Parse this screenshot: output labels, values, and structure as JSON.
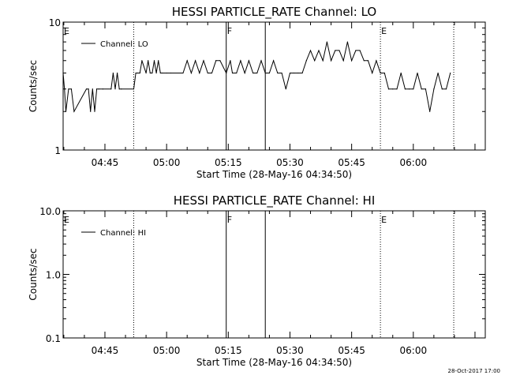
{
  "footer_timestamp": "28-Oct-2017 17:00",
  "chart_data": [
    {
      "type": "line",
      "title": "HESSI PARTICLE_RATE Channel: LO",
      "xlabel": "Start Time (28-May-16 04:34:50)",
      "ylabel": "Counts/sec",
      "y_scale": "log",
      "ylim": [
        1,
        10
      ],
      "y_ticks": [
        "1",
        "10"
      ],
      "xlim": [
        "04:34:50",
        "06:17:30"
      ],
      "x_ticks": [
        "04:45",
        "05:00",
        "05:15",
        "05:30",
        "05:45",
        "06:00"
      ],
      "legend": {
        "placement": "top-left",
        "entries": [
          "Channel: LO"
        ]
      },
      "vertical_markers": [
        {
          "time": "04:34:50",
          "label": "E",
          "style": "none"
        },
        {
          "time": "04:52:00",
          "label": "",
          "style": "dotted"
        },
        {
          "time": "05:14:30",
          "label": "F",
          "style": "solid"
        },
        {
          "time": "05:24:00",
          "label": "",
          "style": "solid"
        },
        {
          "time": "05:52:00",
          "label": "E",
          "style": "dotted"
        },
        {
          "time": "06:09:50",
          "label": "",
          "style": "dotted"
        }
      ],
      "series": [
        {
          "name": "Channel: LO",
          "x": [
            "04:34:50",
            "04:35:10",
            "04:35:30",
            "04:36:10",
            "04:36:50",
            "04:37:30",
            "04:40:30",
            "04:41:00",
            "04:41:30",
            "04:42:00",
            "04:42:30",
            "04:43:00",
            "04:43:30",
            "04:44:30",
            "04:46:30",
            "04:47:00",
            "04:47:30",
            "04:48:00",
            "04:48:30",
            "04:49:00",
            "04:52:00",
            "04:52:30",
            "04:53:00",
            "04:53:30",
            "04:54:00",
            "04:55:00",
            "04:55:30",
            "04:56:00",
            "04:56:30",
            "04:57:00",
            "04:57:30",
            "04:58:00",
            "04:58:30",
            "04:59:00",
            "05:00:00",
            "05:01:00",
            "05:04:00",
            "05:05:00",
            "05:06:00",
            "05:07:00",
            "05:08:00",
            "05:09:00",
            "05:10:00",
            "05:11:00",
            "05:12:00",
            "05:13:00",
            "05:14:30",
            "05:15:30",
            "05:16:00",
            "05:17:00",
            "05:18:00",
            "05:19:00",
            "05:20:00",
            "05:21:00",
            "05:22:00",
            "05:23:00",
            "05:24:00",
            "05:25:00",
            "05:26:00",
            "05:27:00",
            "05:28:00",
            "05:29:00",
            "05:30:00",
            "05:31:00",
            "05:32:00",
            "05:33:00",
            "05:34:00",
            "05:35:00",
            "05:36:00",
            "05:37:00",
            "05:38:00",
            "05:39:00",
            "05:40:00",
            "05:41:00",
            "05:42:00",
            "05:43:00",
            "05:44:00",
            "05:45:00",
            "05:46:00",
            "05:47:00",
            "05:48:00",
            "05:49:00",
            "05:50:00",
            "05:51:00",
            "05:52:00",
            "05:53:00",
            "05:54:00",
            "05:55:00",
            "05:56:00",
            "05:57:00",
            "05:58:00",
            "05:59:00",
            "06:00:00",
            "06:01:00",
            "06:02:00",
            "06:03:00",
            "06:04:00",
            "06:05:00",
            "06:06:00",
            "06:07:00",
            "06:08:00",
            "06:09:00"
          ],
          "y": [
            4.0,
            3.0,
            2.0,
            3.0,
            3.0,
            2.0,
            3.0,
            3.0,
            2.0,
            3.0,
            2.0,
            3.0,
            3.0,
            3.0,
            3.0,
            4.0,
            3.0,
            4.0,
            3.0,
            3.0,
            3.0,
            4.0,
            4.0,
            4.0,
            5.0,
            4.0,
            5.0,
            4.0,
            4.0,
            5.0,
            4.0,
            5.0,
            4.0,
            4.0,
            4.0,
            4.0,
            4.0,
            5.0,
            4.0,
            5.0,
            4.0,
            5.0,
            4.0,
            4.0,
            5.0,
            5.0,
            4.0,
            5.0,
            4.0,
            4.0,
            5.0,
            4.0,
            5.0,
            4.0,
            4.0,
            5.0,
            4.0,
            4.0,
            5.0,
            4.0,
            4.0,
            3.0,
            4.0,
            4.0,
            4.0,
            4.0,
            5.0,
            6.0,
            5.0,
            6.0,
            5.0,
            7.0,
            5.0,
            6.0,
            6.0,
            5.0,
            7.0,
            5.0,
            6.0,
            6.0,
            5.0,
            5.0,
            4.0,
            5.0,
            4.0,
            4.0,
            3.0,
            3.0,
            3.0,
            4.0,
            3.0,
            3.0,
            3.0,
            4.0,
            3.0,
            3.0,
            2.0,
            3.0,
            4.0,
            3.0,
            3.0,
            4.0
          ]
        }
      ]
    },
    {
      "type": "line",
      "title": "HESSI PARTICLE_RATE Channel: HI",
      "xlabel": "Start Time (28-May-16 04:34:50)",
      "ylabel": "Counts/sec",
      "y_scale": "log",
      "ylim": [
        0.1,
        10
      ],
      "y_ticks": [
        "0.1",
        "1.0",
        "10.0"
      ],
      "xlim": [
        "04:34:50",
        "06:17:30"
      ],
      "x_ticks": [
        "04:45",
        "05:00",
        "05:15",
        "05:30",
        "05:45",
        "06:00"
      ],
      "legend": {
        "placement": "top-left",
        "entries": [
          "Channel: HI"
        ]
      },
      "vertical_markers": [
        {
          "time": "04:34:50",
          "label": "E",
          "style": "none"
        },
        {
          "time": "04:52:00",
          "label": "",
          "style": "dotted"
        },
        {
          "time": "05:14:30",
          "label": "F",
          "style": "solid"
        },
        {
          "time": "05:24:00",
          "label": "",
          "style": "solid"
        },
        {
          "time": "05:52:00",
          "label": "E",
          "style": "dotted"
        },
        {
          "time": "06:09:50",
          "label": "",
          "style": "dotted"
        }
      ],
      "series": [
        {
          "name": "Channel: HI",
          "x": [],
          "y": []
        }
      ]
    }
  ]
}
